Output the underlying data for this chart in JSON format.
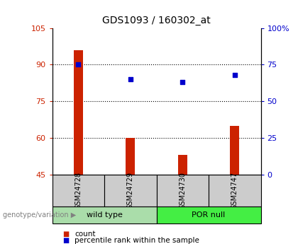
{
  "title": "GDS1093 / 160302_at",
  "samples": [
    "GSM24728",
    "GSM24729",
    "GSM24730",
    "GSM24747"
  ],
  "bar_values": [
    96,
    60,
    53,
    65
  ],
  "dot_values": [
    75,
    65,
    63,
    68
  ],
  "bar_color": "#cc2200",
  "dot_color": "#0000cc",
  "ylim_left": [
    45,
    105
  ],
  "ylim_right": [
    0,
    100
  ],
  "yticks_left": [
    45,
    60,
    75,
    90,
    105
  ],
  "yticks_right": [
    0,
    25,
    50,
    75,
    100
  ],
  "ytick_labels_right": [
    "0",
    "25",
    "50",
    "75",
    "100%"
  ],
  "groups": [
    {
      "label": "wild type",
      "indices": [
        0,
        1
      ],
      "color": "#aaddaa"
    },
    {
      "label": "POR null",
      "indices": [
        2,
        3
      ],
      "color": "#44ee44"
    }
  ],
  "genotype_label": "genotype/variation",
  "legend_count_label": "count",
  "legend_pct_label": "percentile rank within the sample",
  "background_color": "#ffffff",
  "plot_bg": "#ffffff",
  "sample_box_color": "#cccccc",
  "bar_width": 0.18,
  "grid_yticks": [
    60,
    75,
    90
  ]
}
